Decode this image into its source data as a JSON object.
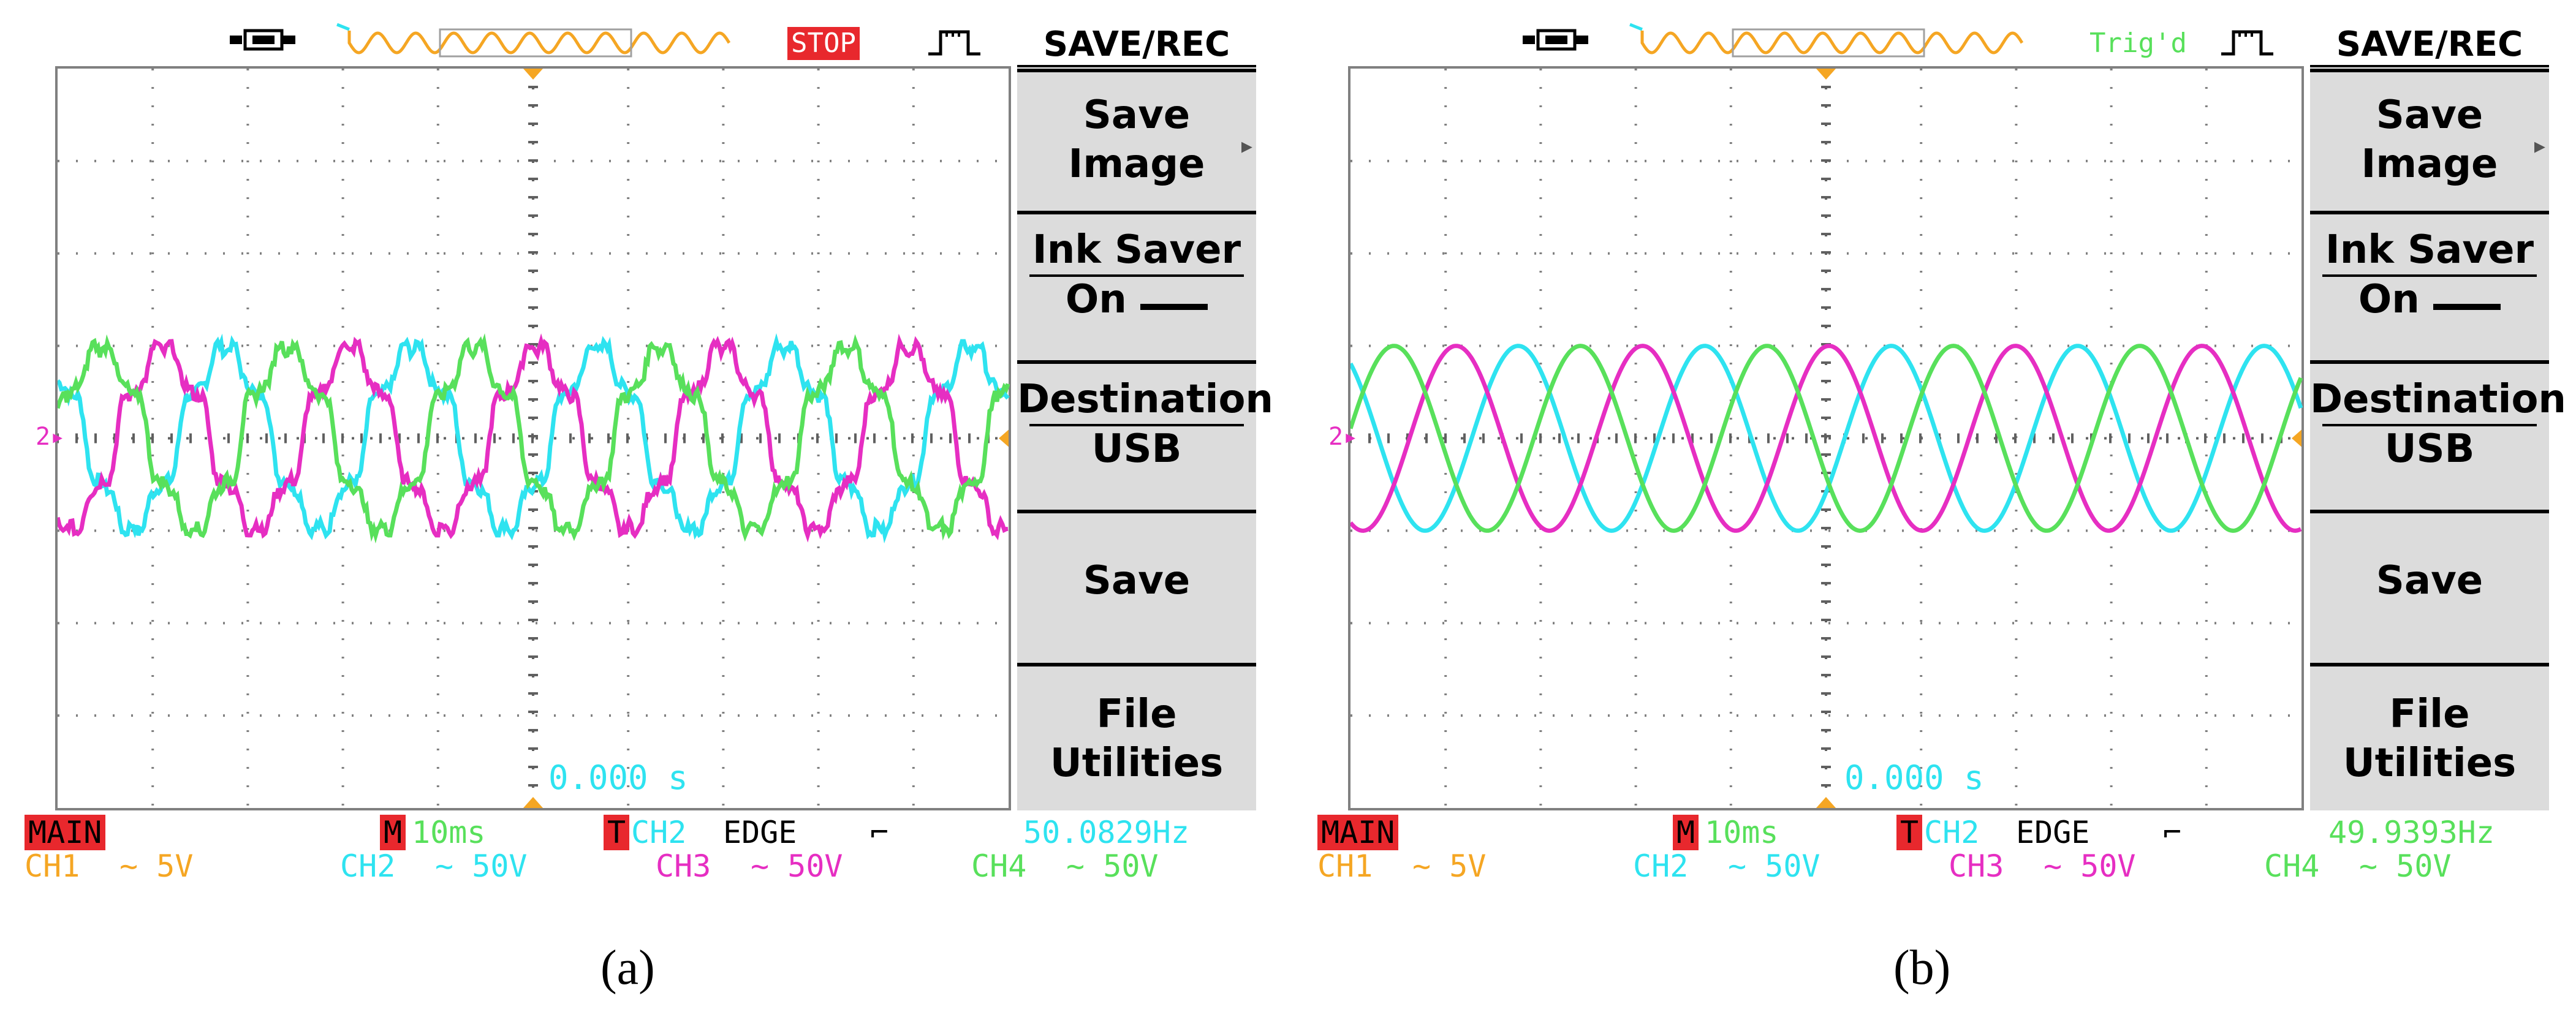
{
  "panels": [
    {
      "label": "(a)",
      "status": "STOP",
      "menu": {
        "title": "SAVE/REC",
        "save_image": [
          "Save",
          "Image"
        ],
        "ink_saver": "Ink Saver",
        "ink_saver_value": "On",
        "destination": "Destination",
        "destination_value": "USB",
        "save": "Save",
        "file_utilities": [
          "File",
          "Utilities"
        ]
      },
      "time_zero": "0.000 s",
      "main": "MAIN",
      "timebase_marker": "M",
      "timebase": "10ms",
      "trigger_marker": "T",
      "trigger_source": "CH2",
      "trigger_type": "EDGE",
      "trigger_slope": "⌐",
      "frequency": "50.0829Hz",
      "channels": [
        {
          "name": "CH1",
          "scale": "5V",
          "color": "#f5a623"
        },
        {
          "name": "CH2",
          "scale": "50V",
          "color": "#2ee3f0"
        },
        {
          "name": "CH3",
          "scale": "50V",
          "color": "#e62ec2"
        },
        {
          "name": "CH4",
          "scale": "50V",
          "color": "#58e05b"
        }
      ],
      "ground_marker": "2",
      "waveform": {
        "shape": "distorted-sine",
        "phases": [
          "CH2",
          "CH3",
          "CH4"
        ]
      }
    },
    {
      "label": "(b)",
      "status": "Trig'd",
      "menu": {
        "title": "SAVE/REC",
        "save_image": [
          "Save",
          "Image"
        ],
        "ink_saver": "Ink Saver",
        "ink_saver_value": "On",
        "destination": "Destination",
        "destination_value": "USB",
        "save": "Save",
        "file_utilities": [
          "File",
          "Utilities"
        ]
      },
      "time_zero": "0.000 s",
      "main": "MAIN",
      "timebase_marker": "M",
      "timebase": "10ms",
      "trigger_marker": "T",
      "trigger_source": "CH2",
      "trigger_type": "EDGE",
      "trigger_slope": "⌐",
      "frequency": "49.9393Hz",
      "channels": [
        {
          "name": "CH1",
          "scale": "5V",
          "color": "#f5a623"
        },
        {
          "name": "CH2",
          "scale": "50V",
          "color": "#2ee3f0"
        },
        {
          "name": "CH3",
          "scale": "50V",
          "color": "#e62ec2"
        },
        {
          "name": "CH4",
          "scale": "50V",
          "color": "#58e05b"
        }
      ],
      "ground_marker": "2",
      "waveform": {
        "shape": "clean-sine",
        "phases": [
          "CH2",
          "CH3",
          "CH4"
        ]
      }
    }
  ]
}
